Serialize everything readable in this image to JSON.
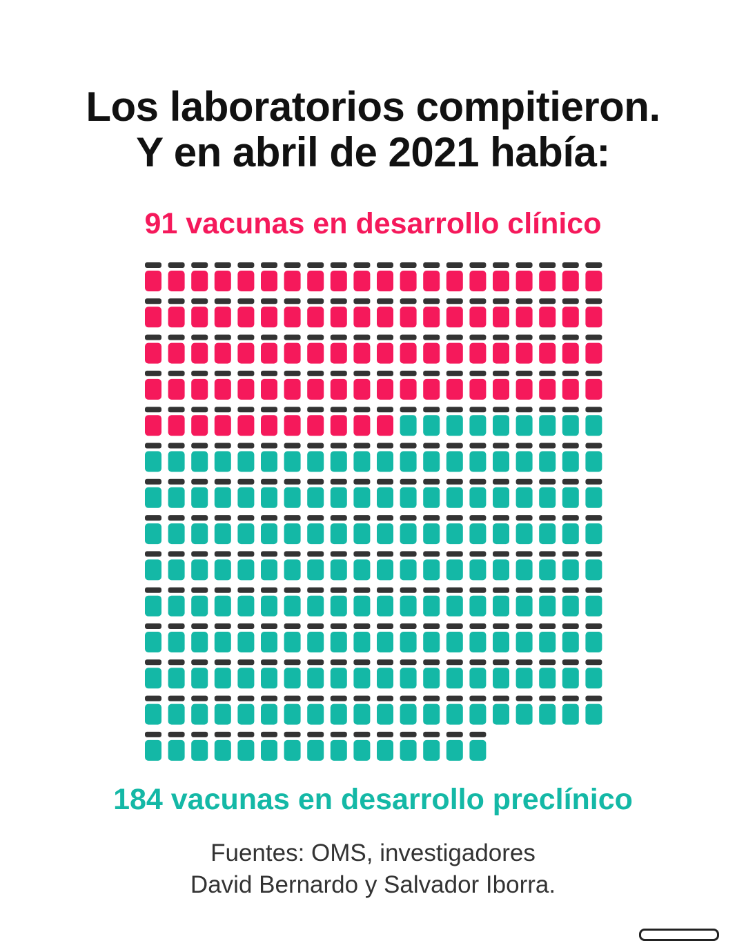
{
  "title": {
    "line1": "Los laboratorios compitieron.",
    "line2": "Y en abril de 2021 había:"
  },
  "chart_data": {
    "type": "pictograph",
    "icon": "vaccine-vial-icon",
    "per_row": 20,
    "series": [
      {
        "name": "91 vacunas en desarrollo clínico",
        "value": 91,
        "color": "#f5195b"
      },
      {
        "name": "184 vacunas en desarrollo preclínico",
        "value": 184,
        "color": "#14b8a6"
      }
    ],
    "cap_color": "#333333"
  },
  "sources": {
    "line1": "Fuentes: OMS, investigadores",
    "line2": "David Bernardo y Salvador Iborra."
  }
}
